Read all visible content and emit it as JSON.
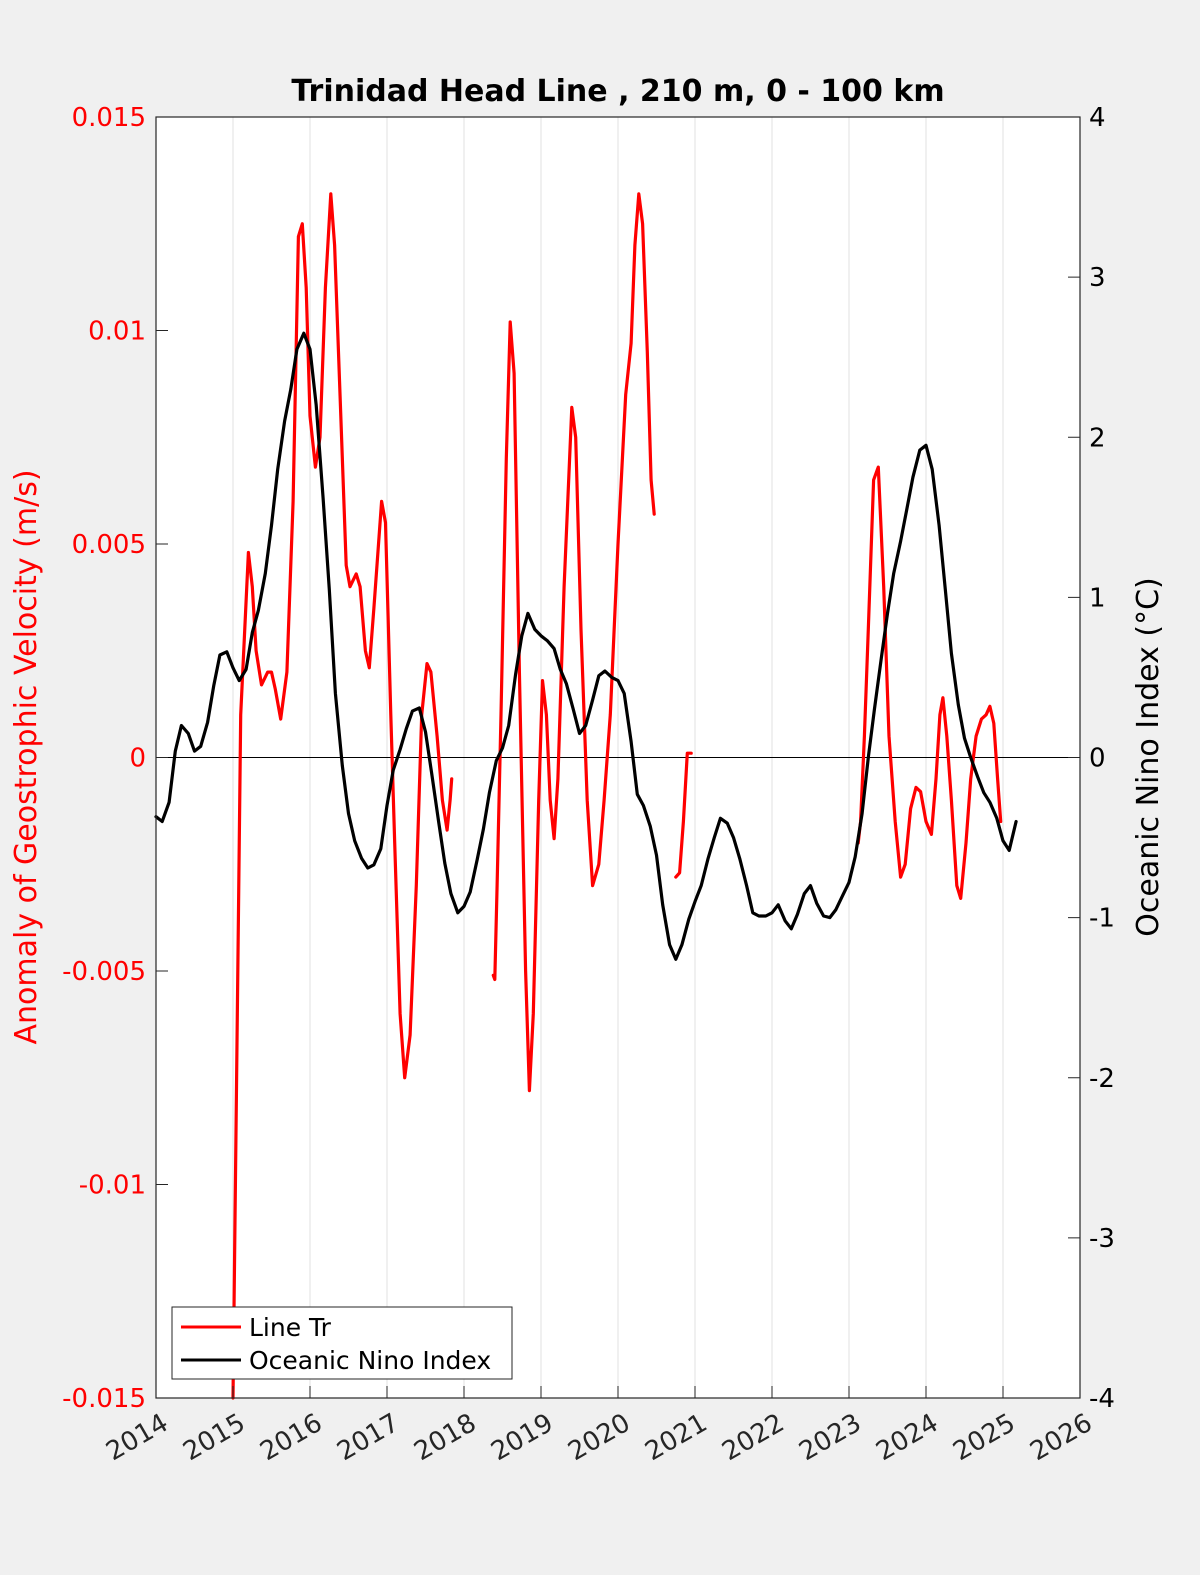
{
  "chart_data": {
    "type": "line",
    "title": "Trinidad Head Line , 210 m, 0 - 100 km",
    "xlabel": "",
    "ylabel_left": "Anomaly of Geostrophic Velocity (m/s)",
    "ylabel_right": "Oceanic Nino Index (°C)",
    "xlim": [
      2014,
      2026
    ],
    "ylim_left": [
      -0.015,
      0.015
    ],
    "ylim_right": [
      -4,
      4
    ],
    "x_ticks": [
      "2014",
      "2015",
      "2016",
      "2017",
      "2018",
      "2019",
      "2020",
      "2021",
      "2022",
      "2023",
      "2024",
      "2025",
      "2026"
    ],
    "y_ticks_left": [
      "-0.015",
      "-0.01",
      "-0.005",
      "0",
      "0.005",
      "0.01",
      "0.015"
    ],
    "y_ticks_right": [
      "-4",
      "-3",
      "-2",
      "-1",
      "0",
      "1",
      "2",
      "3",
      "4"
    ],
    "grid": "vertical",
    "legend_position": "bottom-left",
    "colors": {
      "line_tr": "#ff0000",
      "oni": "#000000"
    },
    "series": [
      {
        "name": "Line Tr",
        "axis": "left",
        "segments": [
          [
            [
              2015.0,
              -0.015
            ],
            [
              2015.1,
              0.001
            ],
            [
              2015.2,
              0.0048
            ],
            [
              2015.25,
              0.004
            ],
            [
              2015.3,
              0.0025
            ],
            [
              2015.37,
              0.0017
            ],
            [
              2015.45,
              0.002
            ],
            [
              2015.5,
              0.002
            ],
            [
              2015.55,
              0.0016
            ],
            [
              2015.62,
              0.0009
            ],
            [
              2015.7,
              0.002
            ],
            [
              2015.78,
              0.006
            ],
            [
              2015.85,
              0.0122
            ],
            [
              2015.9,
              0.0125
            ],
            [
              2015.95,
              0.011
            ],
            [
              2016.0,
              0.008
            ],
            [
              2016.07,
              0.0068
            ],
            [
              2016.13,
              0.0075
            ],
            [
              2016.2,
              0.011
            ],
            [
              2016.27,
              0.0132
            ],
            [
              2016.32,
              0.012
            ],
            [
              2016.4,
              0.008
            ],
            [
              2016.47,
              0.0045
            ],
            [
              2016.52,
              0.004
            ],
            [
              2016.6,
              0.0043
            ],
            [
              2016.65,
              0.004
            ],
            [
              2016.72,
              0.0025
            ],
            [
              2016.77,
              0.0021
            ],
            [
              2016.83,
              0.0035
            ],
            [
              2016.93,
              0.006
            ],
            [
              2016.98,
              0.0055
            ],
            [
              2017.05,
              0.001
            ],
            [
              2017.1,
              -0.002
            ],
            [
              2017.17,
              -0.006
            ],
            [
              2017.23,
              -0.0075
            ],
            [
              2017.3,
              -0.0065
            ],
            [
              2017.38,
              -0.003
            ],
            [
              2017.45,
              0.001
            ],
            [
              2017.52,
              0.0022
            ],
            [
              2017.57,
              0.002
            ],
            [
              2017.65,
              0.0005
            ],
            [
              2017.72,
              -0.001
            ],
            [
              2017.78,
              -0.0017
            ],
            [
              2017.82,
              -0.001
            ],
            [
              2017.84,
              -0.0005
            ]
          ],
          [
            [
              2018.38,
              -0.0051
            ],
            [
              2018.4,
              -0.0052
            ],
            [
              2018.43,
              -0.003
            ],
            [
              2018.48,
              0.001
            ],
            [
              2018.55,
              0.007
            ],
            [
              2018.6,
              0.0102
            ],
            [
              2018.65,
              0.009
            ],
            [
              2018.72,
              0.002
            ],
            [
              2018.8,
              -0.005
            ],
            [
              2018.85,
              -0.0078
            ],
            [
              2018.9,
              -0.006
            ],
            [
              2018.97,
              -0.001
            ],
            [
              2019.02,
              0.0018
            ],
            [
              2019.07,
              0.001
            ],
            [
              2019.12,
              -0.001
            ],
            [
              2019.17,
              -0.0019
            ],
            [
              2019.22,
              -0.0005
            ],
            [
              2019.3,
              0.004
            ],
            [
              2019.4,
              0.0082
            ],
            [
              2019.45,
              0.0075
            ],
            [
              2019.52,
              0.003
            ],
            [
              2019.6,
              -0.001
            ],
            [
              2019.67,
              -0.003
            ],
            [
              2019.75,
              -0.0025
            ],
            [
              2019.82,
              -0.001
            ],
            [
              2019.9,
              0.001
            ],
            [
              2020.0,
              0.005
            ],
            [
              2020.1,
              0.0085
            ],
            [
              2020.17,
              0.0097
            ],
            [
              2020.22,
              0.012
            ],
            [
              2020.27,
              0.0132
            ],
            [
              2020.32,
              0.0125
            ],
            [
              2020.38,
              0.0095
            ],
            [
              2020.43,
              0.0065
            ],
            [
              2020.47,
              0.0057
            ]
          ],
          [
            [
              2020.75,
              -0.0028
            ],
            [
              2020.8,
              -0.0027
            ],
            [
              2020.85,
              -0.0015
            ],
            [
              2020.9,
              0.0001
            ],
            [
              2020.95,
              0.0001
            ]
          ],
          [
            [
              2023.12,
              -0.002
            ],
            [
              2023.15,
              -0.0015
            ],
            [
              2023.2,
              0.0005
            ],
            [
              2023.25,
              0.003
            ],
            [
              2023.32,
              0.0065
            ],
            [
              2023.38,
              0.0068
            ],
            [
              2023.45,
              0.004
            ],
            [
              2023.52,
              0.0005
            ],
            [
              2023.6,
              -0.0015
            ],
            [
              2023.67,
              -0.0028
            ],
            [
              2023.73,
              -0.0025
            ],
            [
              2023.8,
              -0.0012
            ],
            [
              2023.87,
              -0.0007
            ],
            [
              2023.93,
              -0.0008
            ],
            [
              2024.0,
              -0.0015
            ],
            [
              2024.07,
              -0.0018
            ],
            [
              2024.13,
              -0.0005
            ],
            [
              2024.18,
              0.001
            ],
            [
              2024.22,
              0.0014
            ],
            [
              2024.27,
              0.0005
            ],
            [
              2024.33,
              -0.001
            ],
            [
              2024.4,
              -0.003
            ],
            [
              2024.45,
              -0.0033
            ],
            [
              2024.52,
              -0.002
            ],
            [
              2024.58,
              -0.0005
            ],
            [
              2024.65,
              0.0005
            ],
            [
              2024.72,
              0.0009
            ],
            [
              2024.78,
              0.001
            ],
            [
              2024.83,
              0.0012
            ],
            [
              2024.88,
              0.0008
            ],
            [
              2024.93,
              -0.0005
            ],
            [
              2024.97,
              -0.0015
            ]
          ]
        ]
      },
      {
        "name": "Oceanic Nino Index",
        "axis": "right",
        "segments": [
          [
            [
              2014.0,
              -0.37
            ],
            [
              2014.08,
              -0.4
            ],
            [
              2014.17,
              -0.28
            ],
            [
              2014.25,
              0.04
            ],
            [
              2014.33,
              0.2
            ],
            [
              2014.42,
              0.15
            ],
            [
              2014.5,
              0.04
            ],
            [
              2014.58,
              0.07
            ],
            [
              2014.67,
              0.22
            ],
            [
              2014.75,
              0.45
            ],
            [
              2014.83,
              0.64
            ],
            [
              2014.92,
              0.66
            ],
            [
              2015.0,
              0.56
            ],
            [
              2015.08,
              0.48
            ],
            [
              2015.17,
              0.55
            ],
            [
              2015.25,
              0.78
            ],
            [
              2015.33,
              0.92
            ],
            [
              2015.42,
              1.15
            ],
            [
              2015.5,
              1.45
            ],
            [
              2015.58,
              1.8
            ],
            [
              2015.67,
              2.1
            ],
            [
              2015.75,
              2.3
            ],
            [
              2015.83,
              2.55
            ],
            [
              2015.92,
              2.65
            ],
            [
              2016.0,
              2.55
            ],
            [
              2016.08,
              2.2
            ],
            [
              2016.17,
              1.62
            ],
            [
              2016.25,
              1.05
            ],
            [
              2016.33,
              0.4
            ],
            [
              2016.42,
              -0.05
            ],
            [
              2016.5,
              -0.35
            ],
            [
              2016.58,
              -0.52
            ],
            [
              2016.67,
              -0.63
            ],
            [
              2016.75,
              -0.69
            ],
            [
              2016.83,
              -0.67
            ],
            [
              2016.92,
              -0.57
            ],
            [
              2017.0,
              -0.3
            ],
            [
              2017.08,
              -0.08
            ],
            [
              2017.17,
              0.05
            ],
            [
              2017.25,
              0.18
            ],
            [
              2017.33,
              0.29
            ],
            [
              2017.42,
              0.31
            ],
            [
              2017.5,
              0.16
            ],
            [
              2017.58,
              -0.1
            ],
            [
              2017.67,
              -0.4
            ],
            [
              2017.75,
              -0.66
            ],
            [
              2017.83,
              -0.85
            ],
            [
              2017.92,
              -0.97
            ],
            [
              2018.0,
              -0.93
            ],
            [
              2018.08,
              -0.84
            ],
            [
              2018.17,
              -0.64
            ],
            [
              2018.25,
              -0.45
            ],
            [
              2018.33,
              -0.22
            ],
            [
              2018.42,
              -0.02
            ],
            [
              2018.5,
              0.06
            ],
            [
              2018.58,
              0.2
            ],
            [
              2018.67,
              0.52
            ],
            [
              2018.75,
              0.76
            ],
            [
              2018.83,
              0.9
            ],
            [
              2018.92,
              0.8
            ],
            [
              2019.0,
              0.76
            ],
            [
              2019.08,
              0.73
            ],
            [
              2019.17,
              0.68
            ],
            [
              2019.25,
              0.55
            ],
            [
              2019.33,
              0.46
            ],
            [
              2019.42,
              0.3
            ],
            [
              2019.5,
              0.15
            ],
            [
              2019.58,
              0.2
            ],
            [
              2019.67,
              0.36
            ],
            [
              2019.75,
              0.51
            ],
            [
              2019.83,
              0.54
            ],
            [
              2019.92,
              0.5
            ],
            [
              2020.0,
              0.48
            ],
            [
              2020.08,
              0.4
            ],
            [
              2020.17,
              0.1
            ],
            [
              2020.25,
              -0.23
            ],
            [
              2020.33,
              -0.3
            ],
            [
              2020.42,
              -0.43
            ],
            [
              2020.5,
              -0.61
            ],
            [
              2020.58,
              -0.92
            ],
            [
              2020.67,
              -1.17
            ],
            [
              2020.75,
              -1.26
            ],
            [
              2020.83,
              -1.17
            ],
            [
              2020.92,
              -1.01
            ],
            [
              2021.0,
              -0.9
            ],
            [
              2021.08,
              -0.8
            ],
            [
              2021.17,
              -0.63
            ],
            [
              2021.25,
              -0.5
            ],
            [
              2021.33,
              -0.38
            ],
            [
              2021.42,
              -0.41
            ],
            [
              2021.5,
              -0.5
            ],
            [
              2021.58,
              -0.63
            ],
            [
              2021.67,
              -0.8
            ],
            [
              2021.75,
              -0.97
            ],
            [
              2021.83,
              -0.99
            ],
            [
              2021.92,
              -0.99
            ],
            [
              2022.0,
              -0.97
            ],
            [
              2022.08,
              -0.92
            ],
            [
              2022.17,
              -1.02
            ],
            [
              2022.25,
              -1.07
            ],
            [
              2022.33,
              -0.98
            ],
            [
              2022.42,
              -0.85
            ],
            [
              2022.5,
              -0.8
            ],
            [
              2022.58,
              -0.91
            ],
            [
              2022.67,
              -0.99
            ],
            [
              2022.75,
              -1.0
            ],
            [
              2022.83,
              -0.95
            ],
            [
              2022.92,
              -0.86
            ],
            [
              2023.0,
              -0.78
            ],
            [
              2023.08,
              -0.62
            ],
            [
              2023.17,
              -0.35
            ],
            [
              2023.25,
              0.0
            ],
            [
              2023.33,
              0.3
            ],
            [
              2023.42,
              0.62
            ],
            [
              2023.5,
              0.9
            ],
            [
              2023.58,
              1.15
            ],
            [
              2023.67,
              1.35
            ],
            [
              2023.75,
              1.55
            ],
            [
              2023.83,
              1.75
            ],
            [
              2023.92,
              1.92
            ],
            [
              2024.0,
              1.95
            ],
            [
              2024.08,
              1.8
            ],
            [
              2024.17,
              1.45
            ],
            [
              2024.25,
              1.05
            ],
            [
              2024.33,
              0.65
            ],
            [
              2024.42,
              0.33
            ],
            [
              2024.5,
              0.12
            ],
            [
              2024.58,
              0.0
            ],
            [
              2024.67,
              -0.12
            ],
            [
              2024.75,
              -0.22
            ],
            [
              2024.83,
              -0.28
            ],
            [
              2024.92,
              -0.38
            ],
            [
              2025.0,
              -0.52
            ],
            [
              2025.08,
              -0.58
            ],
            [
              2025.17,
              -0.4
            ]
          ]
        ]
      }
    ]
  }
}
